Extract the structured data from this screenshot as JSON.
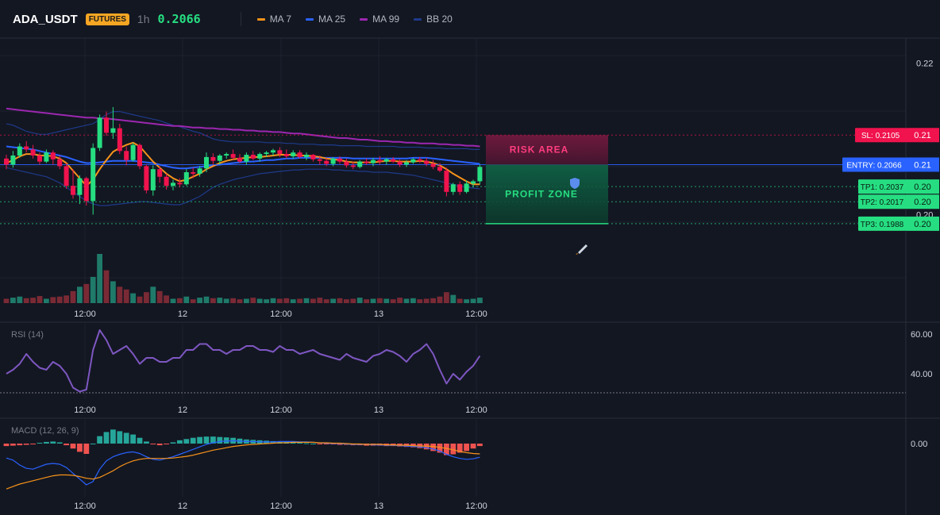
{
  "header": {
    "symbol": "ADA_USDT",
    "badge": "FUTURES",
    "interval": "1h",
    "price": "0.2066",
    "legend": [
      {
        "name": "MA 7",
        "color": "#f7931a"
      },
      {
        "name": "MA 25",
        "color": "#2962ff"
      },
      {
        "name": "MA 99",
        "color": "#9c27b0"
      },
      {
        "name": "BB 20",
        "color": "#1e3a8a"
      }
    ]
  },
  "colors": {
    "up": "#26de81",
    "down": "#f0134d",
    "upVol": "#1f7a6a",
    "downVol": "#7a2a35",
    "background": "#131722"
  },
  "zones": {
    "risk_label": "RISK AREA",
    "profit_label": "PROFIT ZONE"
  },
  "levels": [
    {
      "label": "SL: 0.2105",
      "axis": "0.21",
      "color": "#f0134d"
    },
    {
      "label": "ENTRY: 0.2066",
      "axis": "0.21",
      "color": "#2962ff"
    },
    {
      "label": "TP1: 0.2037",
      "axis": "0.20",
      "color": "#26de81"
    },
    {
      "label": "TP2: 0.2017",
      "axis": "0.20",
      "color": "#26de81"
    },
    {
      "label": "TP3: 0.1988",
      "axis": "0.20",
      "color": "#26de81"
    }
  ],
  "panels": {
    "rsi_title": "RSI (14)",
    "macd_title": "MACD (12, 26, 9)"
  },
  "chart_data": [
    {
      "type": "candlestick",
      "title": "",
      "y_ticks": [
        "0.22",
        "0.20"
      ],
      "x_ticks": [
        "12:00",
        "12",
        "12:00",
        "13",
        "12:00"
      ],
      "ylim": [
        0.198,
        0.222
      ],
      "candles": [
        [
          0.2074,
          0.2079,
          0.206,
          0.2066
        ],
        [
          0.2066,
          0.2084,
          0.2062,
          0.2078
        ],
        [
          0.2078,
          0.2094,
          0.2075,
          0.209
        ],
        [
          0.209,
          0.2097,
          0.2082,
          0.2086
        ],
        [
          0.2086,
          0.2092,
          0.2074,
          0.2078
        ],
        [
          0.2078,
          0.2082,
          0.2066,
          0.207
        ],
        [
          0.207,
          0.2086,
          0.2068,
          0.2082
        ],
        [
          0.2082,
          0.2085,
          0.2066,
          0.2073
        ],
        [
          0.2073,
          0.2078,
          0.206,
          0.2064
        ],
        [
          0.2064,
          0.2068,
          0.2034,
          0.2038
        ],
        [
          0.2038,
          0.206,
          0.2021,
          0.2026
        ],
        [
          0.2026,
          0.2052,
          0.2014,
          0.2048
        ],
        [
          0.2048,
          0.205,
          0.2012,
          0.2018
        ],
        [
          0.2018,
          0.2094,
          0.2,
          0.2088
        ],
        [
          0.2088,
          0.2132,
          0.2084,
          0.2128
        ],
        [
          0.2128,
          0.2136,
          0.2104,
          0.2108
        ],
        [
          0.2108,
          0.2142,
          0.21,
          0.2114
        ],
        [
          0.2114,
          0.212,
          0.208,
          0.2084
        ],
        [
          0.2084,
          0.209,
          0.2065,
          0.2072
        ],
        [
          0.2072,
          0.2095,
          0.207,
          0.2092
        ],
        [
          0.2092,
          0.2094,
          0.206,
          0.2064
        ],
        [
          0.2064,
          0.2066,
          0.2028,
          0.2032
        ],
        [
          0.2032,
          0.2065,
          0.2025,
          0.206
        ],
        [
          0.206,
          0.2064,
          0.2042,
          0.205
        ],
        [
          0.205,
          0.2054,
          0.2033,
          0.2038
        ],
        [
          0.2038,
          0.2046,
          0.2032,
          0.2042
        ],
        [
          0.2042,
          0.2048,
          0.2036,
          0.204
        ],
        [
          0.204,
          0.206,
          0.2038,
          0.2056
        ],
        [
          0.2056,
          0.2062,
          0.2048,
          0.2054
        ],
        [
          0.2054,
          0.2064,
          0.205,
          0.2061
        ],
        [
          0.2061,
          0.2082,
          0.2056,
          0.2076
        ],
        [
          0.2076,
          0.2081,
          0.2066,
          0.2071
        ],
        [
          0.2071,
          0.208,
          0.2066,
          0.2078
        ],
        [
          0.2078,
          0.2082,
          0.2074,
          0.208
        ],
        [
          0.208,
          0.2086,
          0.2072,
          0.2075
        ],
        [
          0.2075,
          0.208,
          0.2068,
          0.207
        ],
        [
          0.207,
          0.2082,
          0.2066,
          0.2079
        ],
        [
          0.2079,
          0.2084,
          0.2072,
          0.2074
        ],
        [
          0.2074,
          0.2082,
          0.207,
          0.208
        ],
        [
          0.208,
          0.2084,
          0.2076,
          0.2082
        ],
        [
          0.2082,
          0.2087,
          0.2078,
          0.2085
        ],
        [
          0.2085,
          0.2089,
          0.2076,
          0.208
        ],
        [
          0.208,
          0.2086,
          0.2074,
          0.2077
        ],
        [
          0.2077,
          0.2085,
          0.2074,
          0.2082
        ],
        [
          0.2082,
          0.2085,
          0.2074,
          0.2076
        ],
        [
          0.2076,
          0.2082,
          0.2072,
          0.2079
        ],
        [
          0.2079,
          0.208,
          0.207,
          0.2073
        ],
        [
          0.2073,
          0.2078,
          0.2066,
          0.2071
        ],
        [
          0.2071,
          0.2075,
          0.2064,
          0.2067
        ],
        [
          0.2067,
          0.2076,
          0.2064,
          0.2074
        ],
        [
          0.2074,
          0.2077,
          0.2067,
          0.207
        ],
        [
          0.207,
          0.2074,
          0.2062,
          0.2065
        ],
        [
          0.2065,
          0.207,
          0.206,
          0.2063
        ],
        [
          0.2063,
          0.2072,
          0.2061,
          0.207
        ],
        [
          0.207,
          0.2074,
          0.2066,
          0.2068
        ],
        [
          0.2068,
          0.2075,
          0.2064,
          0.2072
        ],
        [
          0.2072,
          0.2077,
          0.2066,
          0.207
        ],
        [
          0.207,
          0.2075,
          0.2066,
          0.2073
        ],
        [
          0.2073,
          0.2076,
          0.2068,
          0.207
        ],
        [
          0.207,
          0.2073,
          0.2063,
          0.2066
        ],
        [
          0.2066,
          0.2072,
          0.2063,
          0.2069
        ],
        [
          0.2069,
          0.2075,
          0.2067,
          0.2073
        ],
        [
          0.2073,
          0.2076,
          0.2068,
          0.2071
        ],
        [
          0.2071,
          0.2075,
          0.2064,
          0.2067
        ],
        [
          0.2067,
          0.2072,
          0.206,
          0.2063
        ],
        [
          0.2063,
          0.2068,
          0.2056,
          0.2058
        ],
        [
          0.2058,
          0.2062,
          0.2024,
          0.203
        ],
        [
          0.203,
          0.2042,
          0.2026,
          0.204
        ],
        [
          0.204,
          0.2044,
          0.2026,
          0.203
        ],
        [
          0.203,
          0.2045,
          0.2028,
          0.2041
        ],
        [
          0.2041,
          0.2046,
          0.2036,
          0.2044
        ],
        [
          0.2044,
          0.2066,
          0.204,
          0.2063
        ]
      ],
      "ma7": [
        0.2068,
        0.2072,
        0.2077,
        0.208,
        0.208,
        0.2078,
        0.2078,
        0.2077,
        0.2074,
        0.2068,
        0.2058,
        0.2048,
        0.2038,
        0.2046,
        0.206,
        0.2072,
        0.2083,
        0.2088,
        0.2092,
        0.2095,
        0.209,
        0.208,
        0.207,
        0.2062,
        0.2054,
        0.2048,
        0.2044,
        0.2046,
        0.205,
        0.2054,
        0.206,
        0.2064,
        0.2068,
        0.2071,
        0.2073,
        0.2074,
        0.2075,
        0.2076,
        0.2076,
        0.2077,
        0.2078,
        0.2079,
        0.2079,
        0.2079,
        0.2078,
        0.2078,
        0.2077,
        0.2076,
        0.2074,
        0.2073,
        0.2072,
        0.207,
        0.2069,
        0.2069,
        0.2069,
        0.2069,
        0.207,
        0.2071,
        0.2071,
        0.207,
        0.207,
        0.207,
        0.2071,
        0.207,
        0.2068,
        0.2065,
        0.206,
        0.2054,
        0.2049,
        0.2044,
        0.204,
        0.204
      ],
      "ma25": [
        0.209,
        0.2089,
        0.2088,
        0.2087,
        0.2086,
        0.2084,
        0.2082,
        0.208,
        0.2078,
        0.2076,
        0.2073,
        0.207,
        0.2068,
        0.2068,
        0.2069,
        0.207,
        0.2071,
        0.2071,
        0.2071,
        0.2071,
        0.207,
        0.2069,
        0.2068,
        0.2066,
        0.2064,
        0.2062,
        0.2061,
        0.2061,
        0.2062,
        0.2063,
        0.2064,
        0.2065,
        0.2066,
        0.2067,
        0.2068,
        0.2069,
        0.207,
        0.207,
        0.2071,
        0.2072,
        0.2072,
        0.2073,
        0.2074,
        0.2074,
        0.2075,
        0.2075,
        0.2075,
        0.2075,
        0.2075,
        0.2075,
        0.2075,
        0.2075,
        0.2074,
        0.2074,
        0.2074,
        0.2074,
        0.2074,
        0.2074,
        0.2074,
        0.2074,
        0.2074,
        0.2075,
        0.2075,
        0.2075,
        0.2074,
        0.2073,
        0.2072,
        0.2071,
        0.207,
        0.2069,
        0.2068,
        0.2067
      ],
      "ma99": [
        0.214,
        0.2139,
        0.2138,
        0.2137,
        0.2136,
        0.2135,
        0.2134,
        0.2133,
        0.2132,
        0.2131,
        0.213,
        0.2129,
        0.2128,
        0.2128,
        0.2127,
        0.2127,
        0.2126,
        0.2125,
        0.2124,
        0.2123,
        0.2122,
        0.2121,
        0.212,
        0.2119,
        0.2118,
        0.2117,
        0.2117,
        0.2116,
        0.2115,
        0.2115,
        0.2114,
        0.2114,
        0.2113,
        0.2113,
        0.2112,
        0.2112,
        0.2111,
        0.2111,
        0.211,
        0.211,
        0.2109,
        0.2109,
        0.2108,
        0.2107,
        0.2107,
        0.2106,
        0.2105,
        0.2104,
        0.2103,
        0.2102,
        0.2101,
        0.2101,
        0.21,
        0.2099,
        0.2099,
        0.2098,
        0.2097,
        0.2097,
        0.2096,
        0.2096,
        0.2095,
        0.2095,
        0.2094,
        0.2094,
        0.2094,
        0.2093,
        0.2093,
        0.2092,
        0.2092,
        0.2091,
        0.2091,
        0.209
      ],
      "bb_upper": [
        0.212,
        0.2118,
        0.2114,
        0.211,
        0.2108,
        0.2106,
        0.2106,
        0.2108,
        0.211,
        0.2112,
        0.2114,
        0.2116,
        0.2118,
        0.212,
        0.2126,
        0.2132,
        0.2136,
        0.2136,
        0.2134,
        0.2132,
        0.213,
        0.2128,
        0.2126,
        0.2124,
        0.2121,
        0.2118,
        0.2116,
        0.2113,
        0.211,
        0.2108,
        0.2104,
        0.21,
        0.2098,
        0.2097,
        0.2096,
        0.2096,
        0.2096,
        0.2096,
        0.2096,
        0.2095,
        0.2095,
        0.2095,
        0.2094,
        0.2094,
        0.2093,
        0.2093,
        0.2093,
        0.2092,
        0.2092,
        0.2092,
        0.2091,
        0.2091,
        0.2091,
        0.2091,
        0.209,
        0.209,
        0.209,
        0.209,
        0.209,
        0.2089,
        0.2089,
        0.2089,
        0.2089,
        0.2088,
        0.2088,
        0.2088,
        0.2087,
        0.2087,
        0.2087,
        0.2087,
        0.2086,
        0.2086
      ],
      "bb_lower": [
        0.2062,
        0.206,
        0.2058,
        0.2056,
        0.2054,
        0.2052,
        0.205,
        0.2046,
        0.2042,
        0.2036,
        0.203,
        0.2024,
        0.2018,
        0.2014,
        0.2012,
        0.2012,
        0.2013,
        0.2014,
        0.2015,
        0.2016,
        0.2017,
        0.2017,
        0.2016,
        0.2015,
        0.2014,
        0.2013,
        0.2013,
        0.2016,
        0.202,
        0.2024,
        0.203,
        0.2036,
        0.204,
        0.2043,
        0.2046,
        0.2048,
        0.205,
        0.2052,
        0.2054,
        0.2055,
        0.2056,
        0.2057,
        0.2058,
        0.2059,
        0.2059,
        0.206,
        0.206,
        0.206,
        0.206,
        0.2059,
        0.2059,
        0.2058,
        0.2058,
        0.2057,
        0.2057,
        0.2056,
        0.2056,
        0.2056,
        0.2055,
        0.2054,
        0.2053,
        0.2052,
        0.205,
        0.2048,
        0.2046,
        0.2044,
        0.2042,
        0.204,
        0.2038,
        0.2036,
        0.2035,
        0.2034
      ],
      "volume": [
        8,
        10,
        12,
        9,
        10,
        13,
        8,
        11,
        12,
        14,
        22,
        30,
        35,
        48,
        90,
        60,
        40,
        30,
        25,
        18,
        12,
        20,
        30,
        22,
        14,
        8,
        9,
        12,
        7,
        10,
        12,
        9,
        10,
        8,
        9,
        7,
        8,
        10,
        8,
        7,
        9,
        8,
        9,
        7,
        8,
        9,
        8,
        10,
        7,
        8,
        9,
        7,
        8,
        10,
        7,
        8,
        9,
        8,
        7,
        10,
        8,
        9,
        7,
        8,
        9,
        12,
        20,
        15,
        8,
        7,
        8,
        10
      ]
    },
    {
      "type": "line",
      "title": "RSI (14)",
      "y_ticks": [
        "60.00",
        "40.00"
      ],
      "ylim": [
        28,
        65
      ],
      "x_ticks": [
        "12:00",
        "12",
        "12:00",
        "13",
        "12:00"
      ],
      "series": [
        {
          "name": "",
          "values": [
            40,
            42,
            45,
            50,
            46,
            43,
            42,
            46,
            44,
            40,
            33,
            31,
            32,
            52,
            62,
            57,
            50,
            52,
            54,
            50,
            45,
            48,
            48,
            46,
            46,
            48,
            48,
            52,
            52,
            55,
            55,
            52,
            52,
            50,
            52,
            52,
            54,
            54,
            52,
            52,
            51,
            54,
            52,
            52,
            50,
            51,
            52,
            50,
            49,
            48,
            47,
            50,
            48,
            47,
            46,
            49,
            50,
            52,
            51,
            49,
            46,
            50,
            52,
            55,
            50,
            42,
            35,
            40,
            37,
            41,
            44,
            49
          ]
        }
      ]
    },
    {
      "type": "macd",
      "title": "MACD (12, 26, 9)",
      "y_ticks": [
        "0.00"
      ],
      "ylim": [
        -1.4,
        0.55
      ],
      "x_ticks": [
        "12:00",
        "12",
        "12:00",
        "13",
        "12:00"
      ],
      "macd": [
        -0.35,
        -0.4,
        -0.52,
        -0.6,
        -0.62,
        -0.56,
        -0.5,
        -0.48,
        -0.5,
        -0.58,
        -0.72,
        -0.86,
        -1.0,
        -0.92,
        -0.62,
        -0.42,
        -0.32,
        -0.26,
        -0.22,
        -0.2,
        -0.24,
        -0.32,
        -0.38,
        -0.4,
        -0.36,
        -0.32,
        -0.26,
        -0.2,
        -0.14,
        -0.08,
        -0.02,
        0.02,
        0.05,
        0.06,
        0.07,
        0.06,
        0.05,
        0.05,
        0.04,
        0.04,
        0.04,
        0.05,
        0.05,
        0.05,
        0.04,
        0.04,
        0.03,
        0.02,
        0.01,
        0.0,
        0.0,
        -0.01,
        -0.02,
        -0.02,
        -0.02,
        -0.03,
        -0.03,
        -0.04,
        -0.04,
        -0.05,
        -0.06,
        -0.07,
        -0.08,
        -0.1,
        -0.13,
        -0.18,
        -0.26,
        -0.32,
        -0.36,
        -0.38,
        -0.37,
        -0.33
      ],
      "signal": [
        -1.1,
        -1.04,
        -0.98,
        -0.94,
        -0.9,
        -0.86,
        -0.82,
        -0.78,
        -0.76,
        -0.76,
        -0.77,
        -0.8,
        -0.84,
        -0.86,
        -0.82,
        -0.74,
        -0.66,
        -0.56,
        -0.48,
        -0.42,
        -0.38,
        -0.36,
        -0.36,
        -0.36,
        -0.36,
        -0.35,
        -0.33,
        -0.31,
        -0.28,
        -0.24,
        -0.2,
        -0.16,
        -0.13,
        -0.1,
        -0.07,
        -0.05,
        -0.03,
        -0.02,
        -0.01,
        0.0,
        0.01,
        0.02,
        0.02,
        0.03,
        0.03,
        0.03,
        0.03,
        0.02,
        0.02,
        0.01,
        0.01,
        0.0,
        -0.01,
        -0.01,
        -0.02,
        -0.02,
        -0.02,
        -0.03,
        -0.03,
        -0.04,
        -0.04,
        -0.05,
        -0.06,
        -0.06,
        -0.07,
        -0.09,
        -0.12,
        -0.15,
        -0.19,
        -0.22,
        -0.24,
        -0.25
      ],
      "histogram": [
        -0.06,
        -0.05,
        -0.04,
        -0.03,
        -0.02,
        0.02,
        0.04,
        0.05,
        0.03,
        -0.04,
        -0.12,
        -0.2,
        -0.25,
        0.0,
        0.18,
        0.28,
        0.34,
        0.3,
        0.26,
        0.22,
        0.14,
        0.05,
        -0.02,
        -0.04,
        -0.01,
        0.03,
        0.08,
        0.11,
        0.14,
        0.16,
        0.17,
        0.17,
        0.16,
        0.15,
        0.14,
        0.12,
        0.1,
        0.09,
        0.08,
        0.07,
        0.06,
        0.05,
        0.04,
        0.03,
        0.02,
        0.01,
        0.0,
        -0.01,
        -0.01,
        -0.02,
        -0.03,
        -0.03,
        -0.04,
        -0.04,
        -0.05,
        -0.05,
        -0.05,
        -0.06,
        -0.06,
        -0.07,
        -0.08,
        -0.09,
        -0.11,
        -0.14,
        -0.18,
        -0.22,
        -0.28,
        -0.26,
        -0.22,
        -0.18,
        -0.12,
        -0.06
      ]
    }
  ]
}
